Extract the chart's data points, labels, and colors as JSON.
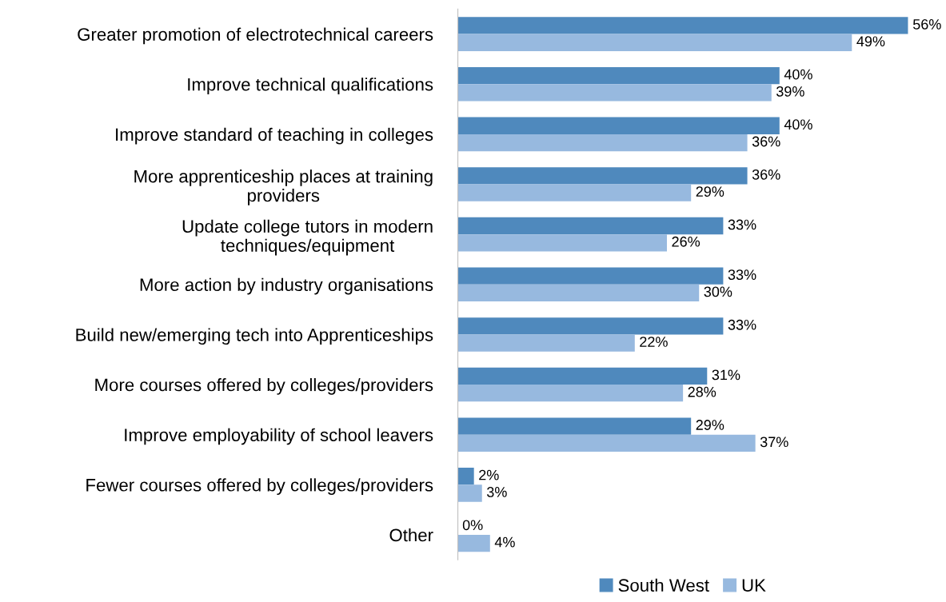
{
  "chart_data": {
    "type": "bar",
    "orientation": "horizontal",
    "legend": "bottom",
    "grid": false,
    "categories": [
      "Greater promotion of electrotechnical careers",
      "Improve technical qualifications",
      "Improve standard of teaching in colleges",
      "More apprenticeship places at training\nproviders",
      "Update college tutors in modern\ntechniques/equipment",
      "More action by industry organisations",
      "Build new/emerging tech into Apprenticeships",
      "More courses offered by colleges/providers",
      "Improve employability of school leavers",
      "Fewer courses offered by colleges/providers",
      "Other"
    ],
    "series": [
      {
        "name": "South West",
        "color": "#4f89bd",
        "values": [
          56,
          40,
          40,
          36,
          33,
          33,
          33,
          31,
          29,
          2,
          0
        ],
        "value_labels": [
          "56%",
          "40%",
          "40%",
          "36%",
          "33%",
          "33%",
          "33%",
          "31%",
          "29%",
          "2%",
          "0%"
        ]
      },
      {
        "name": "UK",
        "color": "#97b9df",
        "values": [
          49,
          39,
          36,
          29,
          26,
          30,
          22,
          28,
          37,
          3,
          4
        ],
        "value_labels": [
          "49%",
          "39%",
          "36%",
          "29%",
          "26%",
          "30%",
          "22%",
          "28%",
          "37%",
          "3%",
          "4%"
        ]
      }
    ]
  }
}
